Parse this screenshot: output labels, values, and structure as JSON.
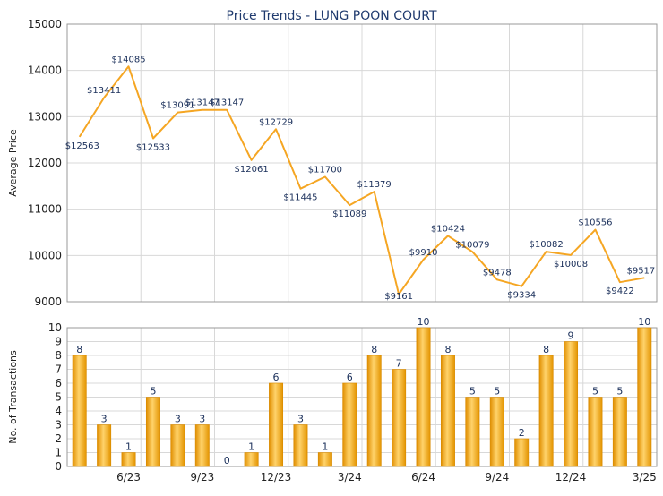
{
  "chart_data": [
    {
      "type": "line",
      "title": "Price Trends - LUNG POON COURT",
      "ylabel": "Average Price",
      "ylim": [
        9000,
        15000
      ],
      "yticks": [
        9000,
        10000,
        11000,
        12000,
        13000,
        14000,
        15000
      ],
      "grid": true,
      "line_color": "#f5a623",
      "series": [
        {
          "values": [
            12563,
            13411,
            14085,
            12533,
            13091,
            13147,
            13147,
            12061,
            12729,
            11445,
            11700,
            11089,
            11379,
            9161,
            9910,
            10424,
            10079,
            9478,
            9334,
            10082,
            10008,
            10556,
            9422,
            9517
          ],
          "labels": [
            "$12563",
            "$13411",
            "$14085",
            "$12533",
            "$13091",
            "$13147",
            "$13147",
            "$12061",
            "$12729",
            "$11445",
            "$11700",
            "$11089",
            "$11379",
            "$9161",
            "$9910",
            "$10424",
            "$10079",
            "$9478",
            "$9334",
            "$10082",
            "$10008",
            "$10556",
            "$9422",
            "$9517"
          ]
        }
      ]
    },
    {
      "type": "bar",
      "ylabel": "No. of Transactions",
      "ylim": [
        0,
        10
      ],
      "yticks": [
        0,
        1,
        2,
        3,
        4,
        5,
        6,
        7,
        8,
        9,
        10
      ],
      "grid": true,
      "bar_color": "#f5a623",
      "categories": [
        "",
        "",
        "6/23",
        "",
        "",
        "9/23",
        "",
        "",
        "12/23",
        "",
        "",
        "3/24",
        "",
        "",
        "6/24",
        "",
        "",
        "9/24",
        "",
        "",
        "12/24",
        "",
        "",
        "3/25"
      ],
      "values": [
        8,
        3,
        1,
        5,
        3,
        3,
        0,
        1,
        6,
        3,
        1,
        6,
        8,
        7,
        10,
        8,
        5,
        5,
        2,
        8,
        9,
        5,
        5,
        10
      ]
    }
  ]
}
